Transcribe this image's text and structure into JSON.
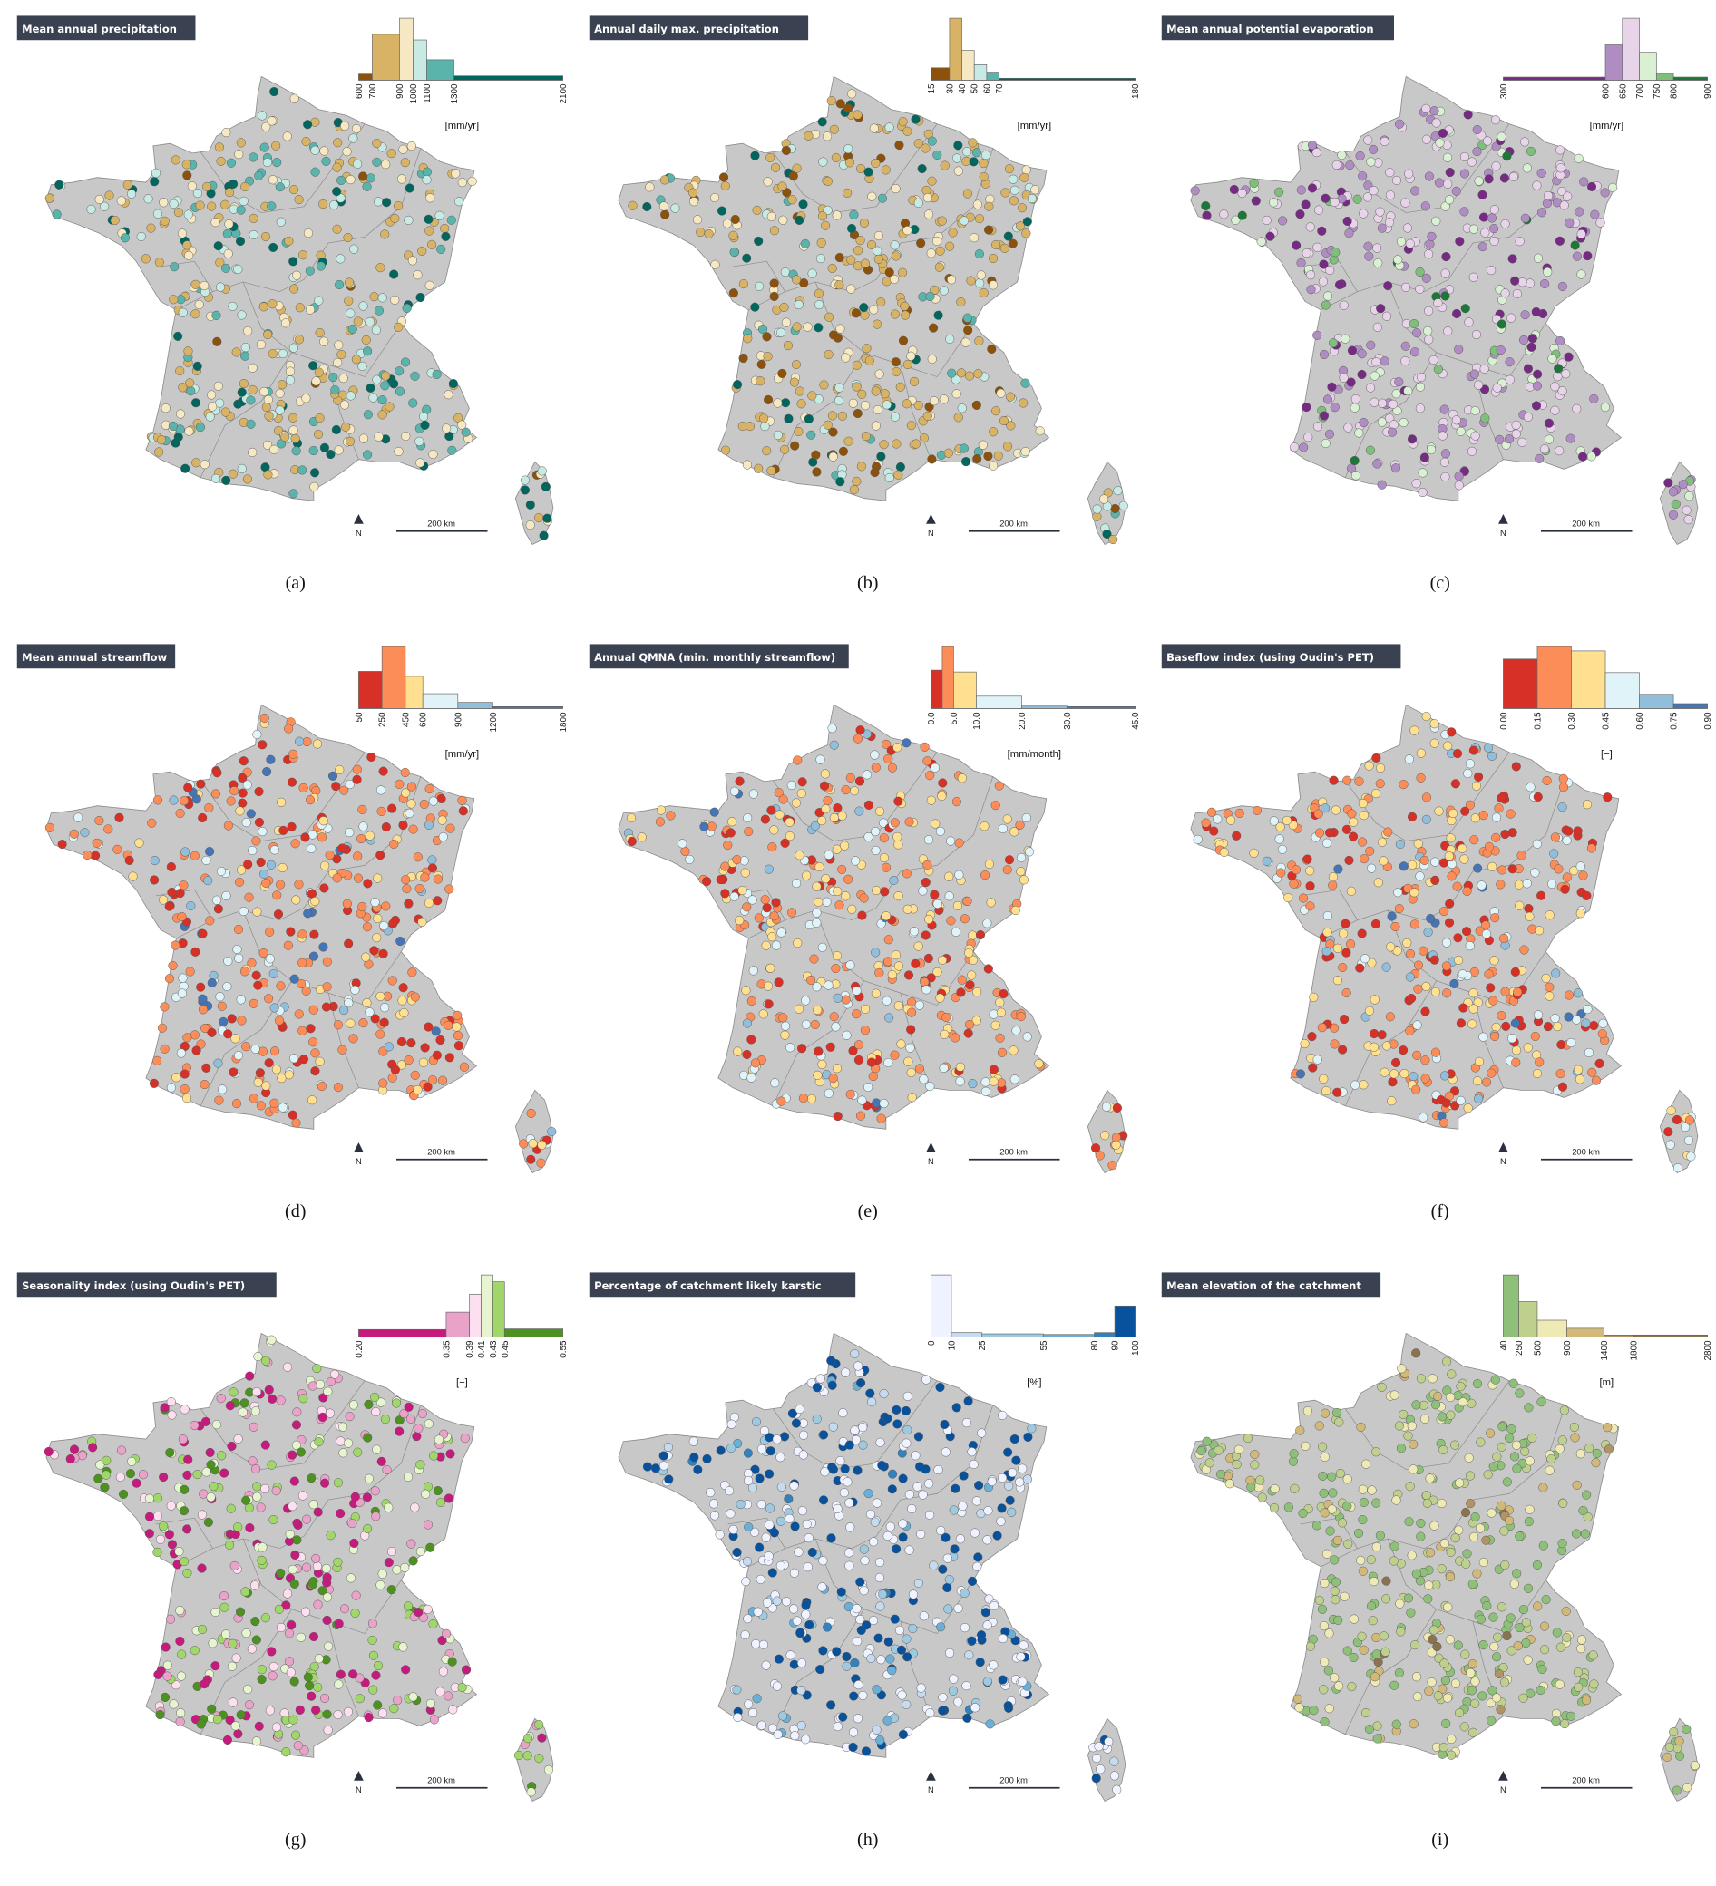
{
  "figure": {
    "map_fill": "#c8c8c8",
    "title_bg": "#3a4150",
    "north_label": "N",
    "scale_label": "200 km"
  },
  "chart_data": [
    {
      "type": "map-histogram",
      "caption": "(a)",
      "title": "Mean annual precipitation",
      "unit": "[mm/yr]",
      "breaks": [
        600,
        700,
        900,
        1000,
        1100,
        1300,
        2100
      ],
      "tick_labels": [
        "600",
        "700",
        "900",
        "1000",
        "1100",
        "1300",
        "2100"
      ],
      "relative_frequency": [
        0.1,
        0.74,
        1.0,
        0.65,
        0.33,
        0.07
      ],
      "colors": [
        "#8c510a",
        "#d8b365",
        "#f6e8c3",
        "#c7eae5",
        "#5ab4ac",
        "#01665e"
      ]
    },
    {
      "type": "map-histogram",
      "caption": "(b)",
      "title": "Annual daily max. precipitation",
      "unit": "[mm/yr]",
      "breaks": [
        15,
        30,
        40,
        50,
        60,
        70,
        180
      ],
      "tick_labels": [
        "15",
        "30",
        "40",
        "50",
        "60",
        "70",
        "180"
      ],
      "relative_frequency": [
        0.2,
        1.0,
        0.48,
        0.25,
        0.13,
        0.02
      ],
      "colors": [
        "#8c510a",
        "#d8b365",
        "#f6e8c3",
        "#c7eae5",
        "#5ab4ac",
        "#01665e"
      ]
    },
    {
      "type": "map-histogram",
      "caption": "(c)",
      "title": "Mean annual potential evaporation",
      "unit": "[mm/yr]",
      "breaks": [
        300,
        600,
        650,
        700,
        750,
        800,
        900
      ],
      "tick_labels": [
        "300",
        "600",
        "650",
        "700",
        "750",
        "800",
        "900"
      ],
      "relative_frequency": [
        0.05,
        0.57,
        1.0,
        0.45,
        0.11,
        0.05
      ],
      "colors": [
        "#762a83",
        "#af8dc3",
        "#e7d4e8",
        "#d9f0d3",
        "#7fbf7b",
        "#1b7837"
      ]
    },
    {
      "type": "map-histogram",
      "caption": "(d)",
      "title": "Mean annual streamflow",
      "unit": "[mm/yr]",
      "breaks": [
        50,
        250,
        450,
        600,
        900,
        1200,
        1800
      ],
      "tick_labels": [
        "50",
        "250",
        "450",
        "600",
        "900",
        "1200",
        "1800"
      ],
      "relative_frequency": [
        0.6,
        1.0,
        0.52,
        0.24,
        0.1,
        0.03
      ],
      "colors": [
        "#d73027",
        "#fc8d59",
        "#fee090",
        "#e0f3f8",
        "#91bfdb",
        "#4575b4"
      ]
    },
    {
      "type": "map-histogram",
      "caption": "(e)",
      "title": "Annual QMNA (min. monthly streamflow)",
      "unit": "[mm/month]",
      "breaks": [
        0,
        2.5,
        5,
        10,
        20,
        30,
        45
      ],
      "tick_labels": [
        "0.0",
        "",
        "5.0",
        "10.0",
        "20.0",
        "30.0",
        "45.0"
      ],
      "relative_frequency": [
        0.62,
        1.0,
        0.59,
        0.2,
        0.04,
        0.01
      ],
      "colors": [
        "#d73027",
        "#fc8d59",
        "#fee090",
        "#e0f3f8",
        "#91bfdb",
        "#4575b4"
      ]
    },
    {
      "type": "map-histogram",
      "caption": "(f)",
      "title": "Baseflow index (using Oudin's PET)",
      "unit": "[−]",
      "breaks": [
        0,
        0.15,
        0.3,
        0.45,
        0.6,
        0.75,
        0.9
      ],
      "tick_labels": [
        "0.00",
        "0.15",
        "0.30",
        "0.45",
        "0.60",
        "0.75",
        "0.90"
      ],
      "relative_frequency": [
        0.8,
        1.0,
        0.93,
        0.58,
        0.23,
        0.08
      ],
      "colors": [
        "#d73027",
        "#fc8d59",
        "#fee090",
        "#e0f3f8",
        "#91bfdb",
        "#4575b4"
      ]
    },
    {
      "type": "map-histogram",
      "caption": "(g)",
      "title": "Seasonality index (using Oudin's PET)",
      "unit": "[−]",
      "breaks": [
        0.2,
        0.35,
        0.39,
        0.41,
        0.43,
        0.45,
        0.55
      ],
      "tick_labels": [
        "0.20",
        "0.35",
        "0.39",
        "0.41",
        "0.43",
        "0.45",
        "0.55"
      ],
      "relative_frequency": [
        0.12,
        0.4,
        0.69,
        1.0,
        0.89,
        0.13
      ],
      "colors": [
        "#c51b7d",
        "#e9a3c9",
        "#fde0ef",
        "#e6f5d0",
        "#a1d76a",
        "#4d9221"
      ]
    },
    {
      "type": "map-histogram",
      "caption": "(h)",
      "title": "Percentage of catchment likely karstic",
      "unit": "[%]",
      "breaks": [
        0,
        10,
        25,
        55,
        80,
        90,
        100
      ],
      "tick_labels": [
        "0",
        "10",
        "25",
        "55",
        "80",
        "90",
        "100"
      ],
      "relative_frequency": [
        1.0,
        0.07,
        0.05,
        0.04,
        0.07,
        0.5
      ],
      "colors": [
        "#eff3ff",
        "#c6dbef",
        "#9ecae1",
        "#6baed6",
        "#3182bd",
        "#08519c"
      ]
    },
    {
      "type": "map-histogram",
      "caption": "(i)",
      "title": "Mean elevation of the catchment",
      "unit": "[m]",
      "breaks": [
        40,
        250,
        500,
        900,
        1400,
        1800,
        2800
      ],
      "tick_labels": [
        "40",
        "250",
        "500",
        "900",
        "1400",
        "1800",
        "2800"
      ],
      "relative_frequency": [
        1.0,
        0.57,
        0.27,
        0.14,
        0.02,
        0.01
      ],
      "colors": [
        "#8fc07a",
        "#bfd08e",
        "#efeab5",
        "#d2b97a",
        "#b09466",
        "#8c7350"
      ]
    }
  ]
}
